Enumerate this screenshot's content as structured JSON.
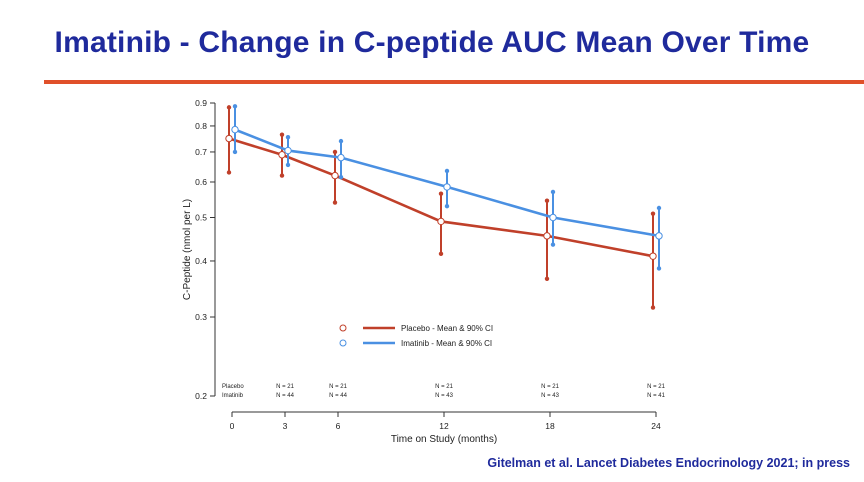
{
  "slide": {
    "title": "Imatinib - Change in C-peptide AUC Mean Over Time",
    "citation": "Gitelman et al.  Lancet Diabetes Endocrinology 2021; in press",
    "title_color": "#1f2a9c",
    "rule_color": "#e0502a"
  },
  "chart_data": {
    "type": "line",
    "title": "",
    "xlabel": "Time on Study (months)",
    "ylabel": "C-Peptide (nmol per L)",
    "x": [
      0,
      3,
      6,
      12,
      18,
      24
    ],
    "x_ticks": [
      "0",
      "3",
      "6",
      "12",
      "18",
      "24"
    ],
    "y_ticks": [
      "0.2",
      "0.3",
      "0.4",
      "0.5",
      "0.6",
      "0.7",
      "0.8",
      "0.9"
    ],
    "y_scale": "log",
    "ylim": [
      0.2,
      0.9
    ],
    "grid": false,
    "legend_position": "center",
    "series": [
      {
        "name": "Placebo - Mean & 90% CI",
        "color": "#c0402a",
        "values": [
          0.75,
          0.69,
          0.62,
          0.49,
          0.455,
          0.41
        ],
        "ci_low": [
          0.63,
          0.62,
          0.54,
          0.415,
          0.365,
          0.315
        ],
        "ci_high": [
          0.88,
          0.765,
          0.7,
          0.565,
          0.545,
          0.51
        ]
      },
      {
        "name": "Imatinib - Mean & 90% CI",
        "color": "#4a90e2",
        "values": [
          0.785,
          0.705,
          0.68,
          0.585,
          0.5,
          0.455
        ],
        "ci_low": [
          0.7,
          0.655,
          0.615,
          0.53,
          0.435,
          0.385
        ],
        "ci_high": [
          0.885,
          0.755,
          0.74,
          0.635,
          0.57,
          0.525
        ]
      }
    ],
    "n_table": {
      "row_labels": [
        "Placebo",
        "Imatinib"
      ],
      "placebo": [
        "",
        "N = 21",
        "N = 21",
        "N = 21",
        "N = 21",
        "N = 21"
      ],
      "imatinib": [
        "",
        "N = 44",
        "N = 44",
        "N = 43",
        "N = 43",
        "N = 41"
      ]
    }
  }
}
